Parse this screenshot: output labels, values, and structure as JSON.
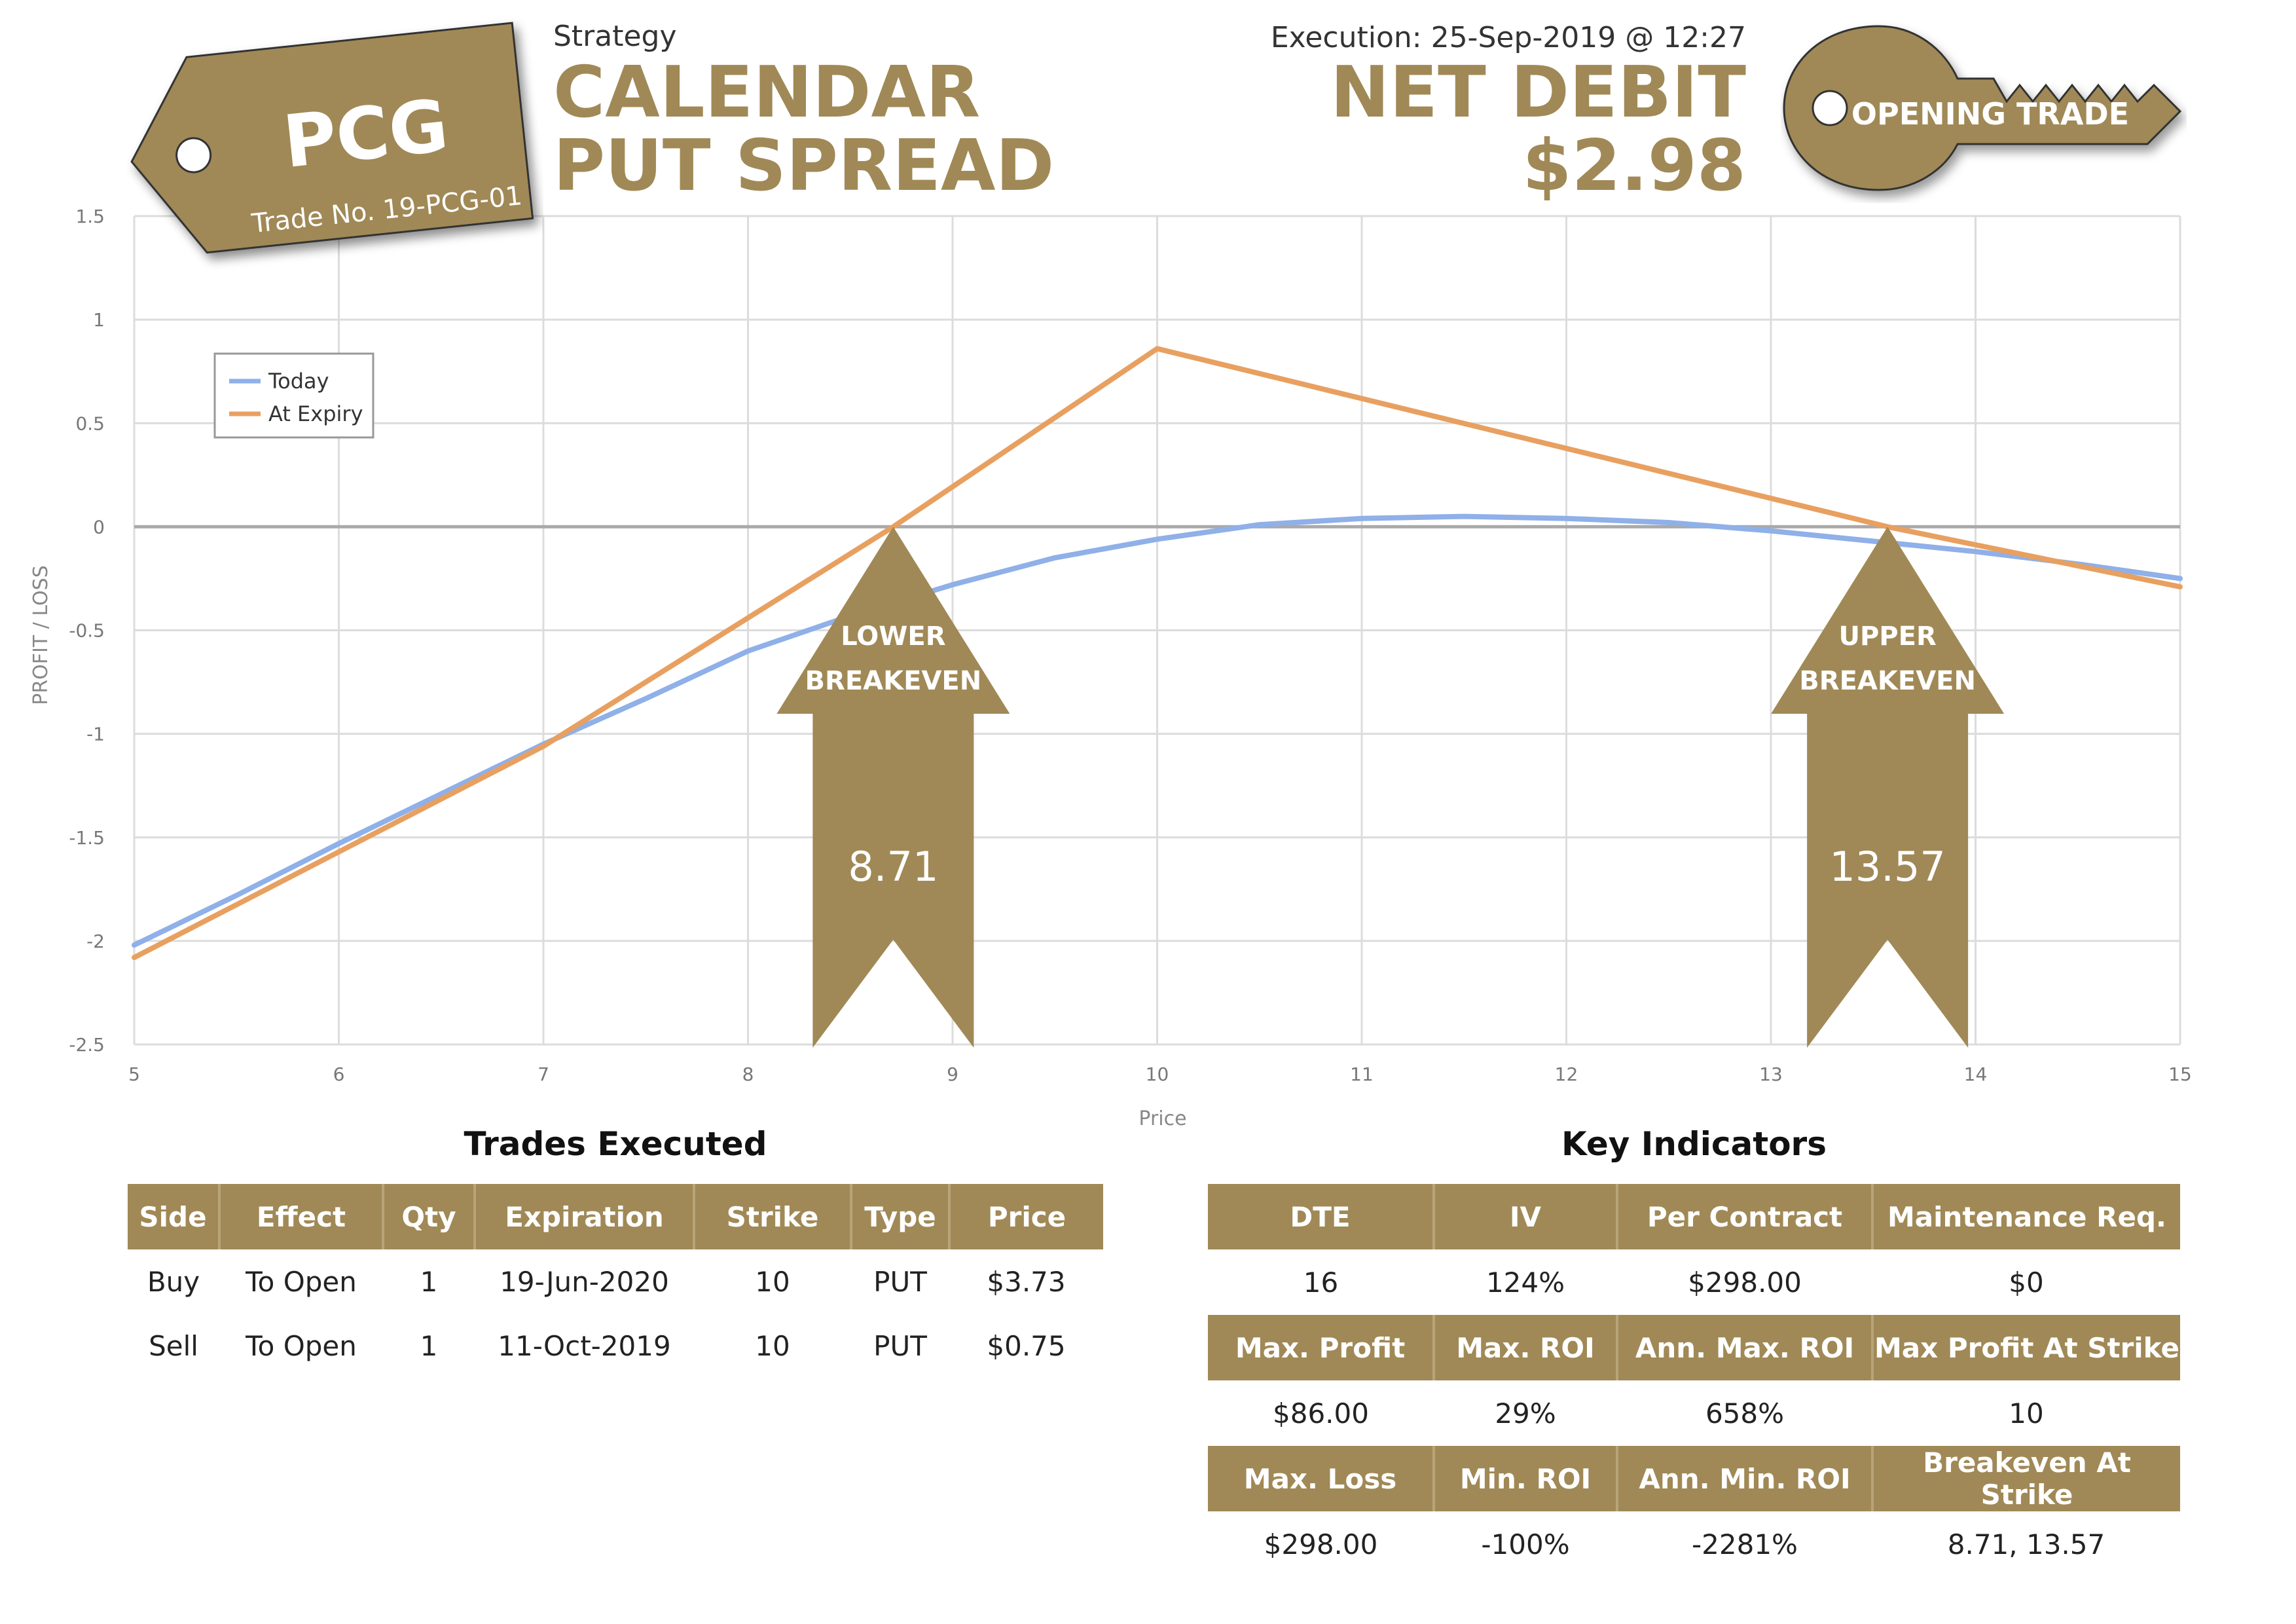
{
  "header": {
    "tag_symbol": "PCG",
    "trade_no": "Trade No. 19-PCG-01",
    "strategy_label": "Strategy",
    "strategy_line1": "CALENDAR",
    "strategy_line2": "PUT SPREAD",
    "execution": "Execution: 25-Sep-2019 @ 12:27",
    "net_debit_label": "NET DEBIT",
    "net_debit_value": "$2.98",
    "key_label": "OPENING TRADE"
  },
  "colors": {
    "accent": "#a08956",
    "today": "#8fb0e8",
    "expiry": "#e8a060"
  },
  "chart_data": {
    "type": "line",
    "xlabel": "Price",
    "ylabel": "PROFIT / LOSS",
    "xlim": [
      5,
      15
    ],
    "ylim": [
      -2.5,
      1.5
    ],
    "x_ticks": [
      "5",
      "6",
      "7",
      "8",
      "9",
      "10",
      "11",
      "12",
      "13",
      "14",
      "15"
    ],
    "y_ticks": [
      "1.5",
      "1",
      "0.5",
      "0",
      "-0.5",
      "-1",
      "-1.5",
      "-2",
      "-2.5"
    ],
    "grid": true,
    "legend_position": "top-left",
    "series": [
      {
        "name": "Today",
        "x": [
          5,
          5.5,
          6,
          6.5,
          7,
          7.5,
          8,
          8.5,
          9,
          9.5,
          10,
          10.5,
          11,
          11.5,
          12,
          12.5,
          13,
          13.5,
          14,
          14.5,
          15
        ],
        "y": [
          -2.02,
          -1.78,
          -1.53,
          -1.29,
          -1.05,
          -0.83,
          -0.6,
          -0.43,
          -0.28,
          -0.15,
          -0.06,
          0.01,
          0.04,
          0.05,
          0.04,
          0.02,
          -0.02,
          -0.07,
          -0.12,
          -0.18,
          -0.25
        ]
      },
      {
        "name": "At Expiry",
        "x": [
          5,
          7,
          8.71,
          10,
          13.57,
          15
        ],
        "y": [
          -2.08,
          -1.06,
          0,
          0.86,
          0,
          -0.29
        ]
      }
    ],
    "annotations": [
      {
        "label1": "LOWER",
        "label2": "BREAKEVEN",
        "x": 8.71,
        "value": "8.71"
      },
      {
        "label1": "UPPER",
        "label2": "BREAKEVEN",
        "x": 13.57,
        "value": "13.57"
      }
    ]
  },
  "trades": {
    "title": "Trades Executed",
    "headers": [
      "Side",
      "Effect",
      "Qty",
      "Expiration",
      "Strike",
      "Type",
      "Price"
    ],
    "rows": [
      [
        "Buy",
        "To Open",
        "1",
        "19-Jun-2020",
        "10",
        "PUT",
        "$3.73"
      ],
      [
        "Sell",
        "To Open",
        "1",
        "11-Oct-2019",
        "10",
        "PUT",
        "$0.75"
      ]
    ]
  },
  "key_indicators": {
    "title": "Key Indicators",
    "groups": [
      {
        "headers": [
          "DTE",
          "IV",
          "Per Contract",
          "Maintenance Req."
        ],
        "values": [
          "16",
          "124%",
          "$298.00",
          "$0"
        ]
      },
      {
        "headers": [
          "Max. Profit",
          "Max. ROI",
          "Ann. Max. ROI",
          "Max Profit At Strike"
        ],
        "values": [
          "$86.00",
          "29%",
          "658%",
          "10"
        ]
      },
      {
        "headers": [
          "Max. Loss",
          "Min. ROI",
          "Ann. Min. ROI",
          "Breakeven At Strike"
        ],
        "values": [
          "$298.00",
          "-100%",
          "-2281%",
          "8.71, 13.57"
        ]
      }
    ]
  }
}
